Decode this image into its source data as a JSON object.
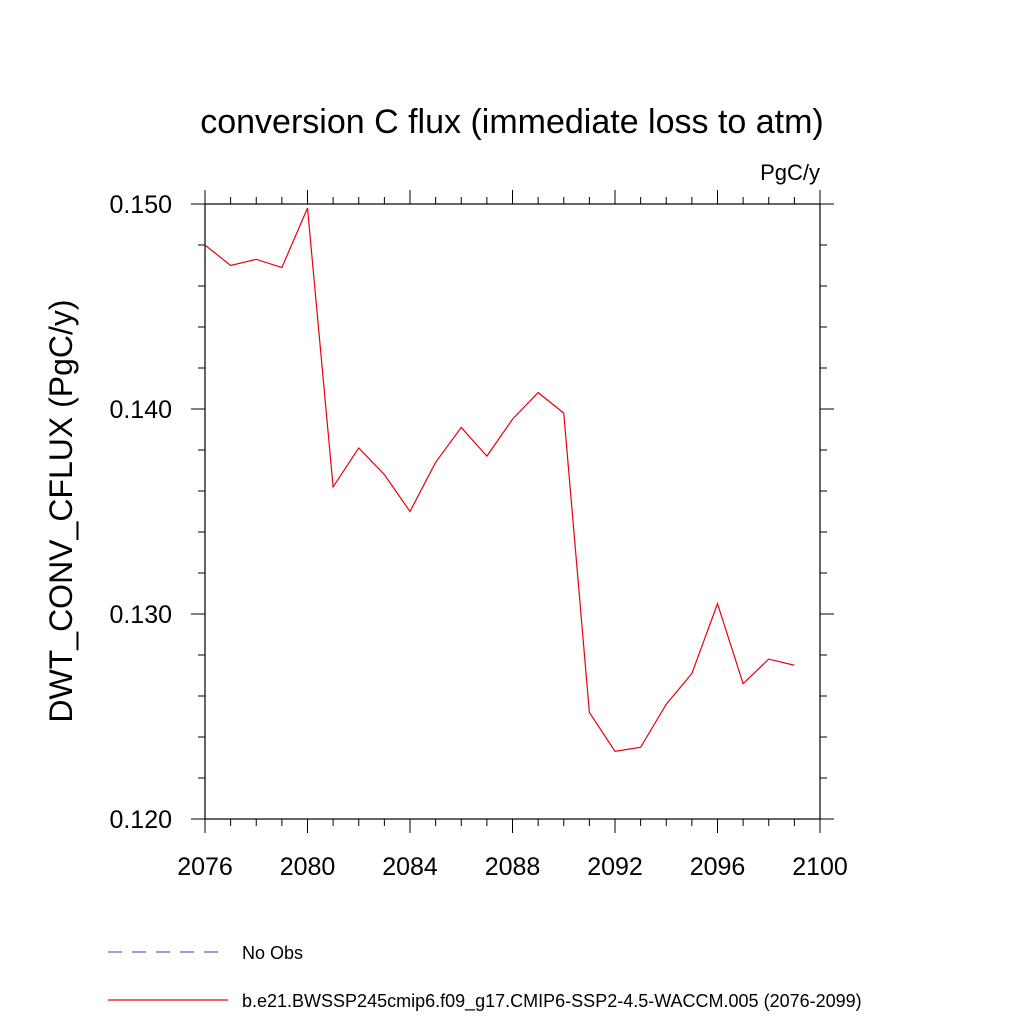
{
  "chart_data": {
    "type": "line",
    "title": "conversion C flux (immediate loss to atm)",
    "units_label": "PgC/y",
    "ylabel": "DWT_CONV_CFLUX  (PgC/y)",
    "xlabel": "",
    "xlim": [
      2076,
      2100
    ],
    "ylim": [
      0.12,
      0.15
    ],
    "x_ticks": [
      2076,
      2080,
      2084,
      2088,
      2092,
      2096,
      2100
    ],
    "y_ticks": [
      0.12,
      0.13,
      0.14,
      0.15
    ],
    "y_tick_labels": [
      "0.120",
      "0.130",
      "0.140",
      "0.150"
    ],
    "x_minor_step": 1,
    "y_minor_step": 0.002,
    "grid": false,
    "legend_position": "bottom",
    "series": [
      {
        "name": "No Obs",
        "color": "#6a5acd",
        "dash": "dashed",
        "x": [],
        "values": []
      },
      {
        "name": "b.e21.BWSSP245cmip6.f09_g17.CMIP6-SSP2-4.5-WACCM.005 (2076-2099)",
        "color": "#e8000b",
        "dash": "solid",
        "x": [
          2076,
          2077,
          2078,
          2079,
          2080,
          2081,
          2082,
          2083,
          2084,
          2085,
          2086,
          2087,
          2088,
          2089,
          2090,
          2091,
          2092,
          2093,
          2094,
          2095,
          2096,
          2097,
          2098,
          2099
        ],
        "values": [
          0.148,
          0.147,
          0.1473,
          0.1469,
          0.1498,
          0.1362,
          0.1381,
          0.1368,
          0.135,
          0.1374,
          0.1391,
          0.1377,
          0.1395,
          0.1408,
          0.1398,
          0.1252,
          0.1233,
          0.1235,
          0.1256,
          0.1271,
          0.1305,
          0.1266,
          0.1278,
          0.1275
        ]
      }
    ]
  }
}
